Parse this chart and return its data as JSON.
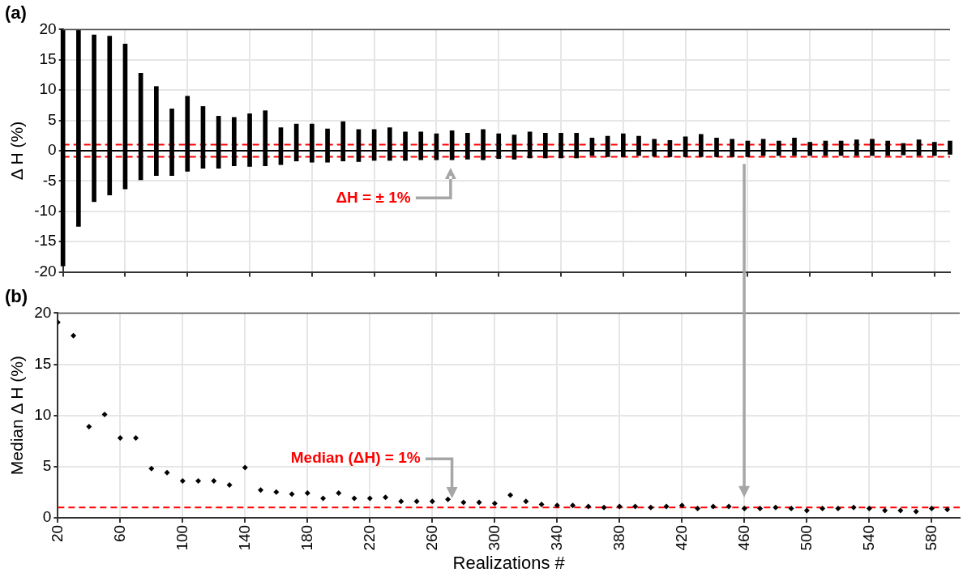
{
  "chart_data": [
    {
      "type": "bar",
      "title": "(a)",
      "ylabel": "Δ H (%)",
      "color": "#000000",
      "tick_labels": "y",
      "grid": true,
      "categories": [
        null,
        null,
        null,
        null,
        null,
        null,
        null,
        null,
        null,
        null,
        null,
        null,
        null,
        null,
        null,
        null,
        null,
        null,
        null,
        null,
        null,
        null,
        null,
        null,
        null,
        null,
        null,
        null,
        null,
        null,
        null,
        null,
        null,
        null,
        null,
        null,
        null,
        null,
        null,
        null,
        null,
        null,
        null,
        null,
        null,
        null,
        null,
        null,
        null,
        null,
        null,
        null,
        null,
        null,
        null,
        null,
        null,
        null
      ],
      "base": [
        -19,
        -12.5,
        -8.4,
        -7.3,
        -6.3,
        -4.8,
        -4.1,
        -4.1,
        -3.4,
        -2.9,
        -2.9,
        -2.5,
        -2.6,
        -2.5,
        -2.3,
        -1.7,
        -1.9,
        -1.9,
        -1.7,
        -1.8,
        -1.6,
        -1.6,
        -1.6,
        -1.5,
        -1.5,
        -1.5,
        -1.4,
        -1.5,
        -1.3,
        -1.4,
        -1.2,
        -1.2,
        -1.2,
        -1.2,
        -0.8,
        -1,
        -1,
        -0.8,
        -0.9,
        -1,
        -1,
        -1,
        -1,
        -1,
        -1,
        -0.8,
        -0.8,
        -0.8,
        -0.8,
        -0.8,
        -0.8,
        -0.8,
        -0.8,
        -0.8,
        -0.7,
        -0.8,
        -0.8,
        -0.6
      ],
      "values": [
        39,
        32.5,
        27.5,
        26.2,
        23.9,
        17.6,
        14.7,
        11,
        12.4,
        10.2,
        8.6,
        8,
        8.7,
        9.1,
        6.1,
        6.1,
        6.3,
        5.5,
        6.5,
        5.3,
        5.1,
        5.4,
        4.7,
        4.6,
        4.3,
        4.8,
        4.3,
        5,
        4.1,
        4,
        4.3,
        4.1,
        4.1,
        4.1,
        2.9,
        3.4,
        3.8,
        3.2,
        2.8,
        2.7,
        3.3,
        3.7,
        3.1,
        2.9,
        2.6,
        2.7,
        2.4,
        2.9,
        2.2,
        2.4,
        2.4,
        2.6,
        2.7,
        2.4,
        1.9,
        2.6,
        2.2,
        2.2
      ],
      "ylim": [
        -20,
        20
      ],
      "yticks": [
        -20,
        -15,
        -10,
        -5,
        0,
        5,
        10,
        15,
        20
      ],
      "ref_lines": [
        {
          "axis": "y",
          "value": 0,
          "color": "#000000",
          "line_style": "solid"
        },
        {
          "axis": "y",
          "value": 1,
          "color": "#ff0000",
          "line_style": "dashed"
        },
        {
          "axis": "y",
          "value": -1,
          "color": "#ff0000",
          "line_style": "dashed"
        }
      ],
      "annotations": [
        "ΔH = ± 1%"
      ]
    },
    {
      "type": "scatter",
      "title": "(b)",
      "ylabel": "Median Δ H (%)",
      "xlabel": "Realizations #",
      "color": "#000000",
      "marker": "diamond",
      "grid": true,
      "x": [
        20,
        30,
        40,
        50,
        60,
        70,
        80,
        90,
        100,
        110,
        120,
        130,
        140,
        150,
        160,
        170,
        180,
        190,
        200,
        210,
        220,
        230,
        240,
        250,
        260,
        270,
        280,
        290,
        300,
        310,
        320,
        330,
        340,
        350,
        360,
        370,
        380,
        390,
        400,
        410,
        420,
        430,
        440,
        450,
        460,
        470,
        480,
        490,
        500,
        510,
        520,
        530,
        540,
        550,
        560,
        570,
        580,
        590
      ],
      "values": [
        19.1,
        17.8,
        8.9,
        10.1,
        7.8,
        7.8,
        4.8,
        4.4,
        3.6,
        3.6,
        3.6,
        3.2,
        4.9,
        2.7,
        2.5,
        2.3,
        2.4,
        1.9,
        2.4,
        1.9,
        1.9,
        2,
        1.6,
        1.6,
        1.6,
        1.8,
        1.5,
        1.5,
        1.4,
        2.2,
        1.6,
        1.3,
        1.2,
        1.2,
        1.1,
        1,
        1.1,
        1.1,
        1,
        1.1,
        1.2,
        0.9,
        1.1,
        1.1,
        0.9,
        0.9,
        1,
        0.9,
        0.7,
        0.9,
        0.9,
        1,
        0.9,
        0.7,
        0.7,
        0.6,
        0.9,
        0.8
      ],
      "xlim": [
        20,
        598
      ],
      "xticks": [
        20,
        60,
        100,
        140,
        180,
        220,
        260,
        300,
        340,
        380,
        420,
        460,
        500,
        540,
        580
      ],
      "ylim": [
        0,
        20
      ],
      "yticks": [
        0,
        5,
        10,
        15,
        20
      ],
      "ref_lines": [
        {
          "axis": "y",
          "value": 1,
          "color": "#ff0000",
          "line_style": "dashed"
        }
      ],
      "annotations": [
        "Median (ΔH) = 1%"
      ]
    }
  ]
}
